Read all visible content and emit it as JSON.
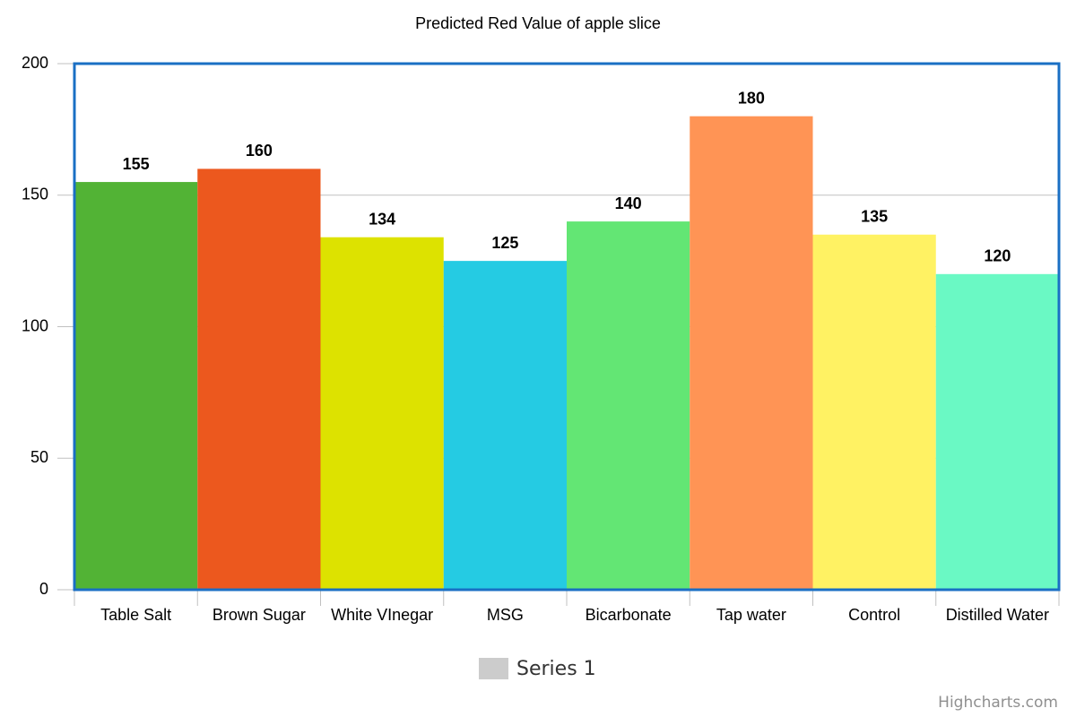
{
  "chart_data": {
    "type": "bar",
    "title": "Predicted Red Value of apple slice",
    "categories": [
      "Table Salt",
      "Brown Sugar",
      "White VInegar",
      "MSG",
      "Bicarbonate",
      "Tap water",
      "Control",
      "Distilled Water"
    ],
    "series": [
      {
        "name": "Series 1",
        "color": "#cccccc",
        "values": [
          155,
          160,
          134,
          125,
          140,
          180,
          135,
          120
        ],
        "colors": [
          "#52b335",
          "#ec581e",
          "#dde200",
          "#25cbe3",
          "#63e674",
          "#ff9455",
          "#fff263",
          "#6af9c4"
        ]
      }
    ],
    "ylim": [
      0,
      200
    ],
    "yticks": [
      0,
      50,
      100,
      150,
      200
    ],
    "grid": true,
    "plot_border_color": "#1a6fc4",
    "credits": "Highcharts.com"
  }
}
